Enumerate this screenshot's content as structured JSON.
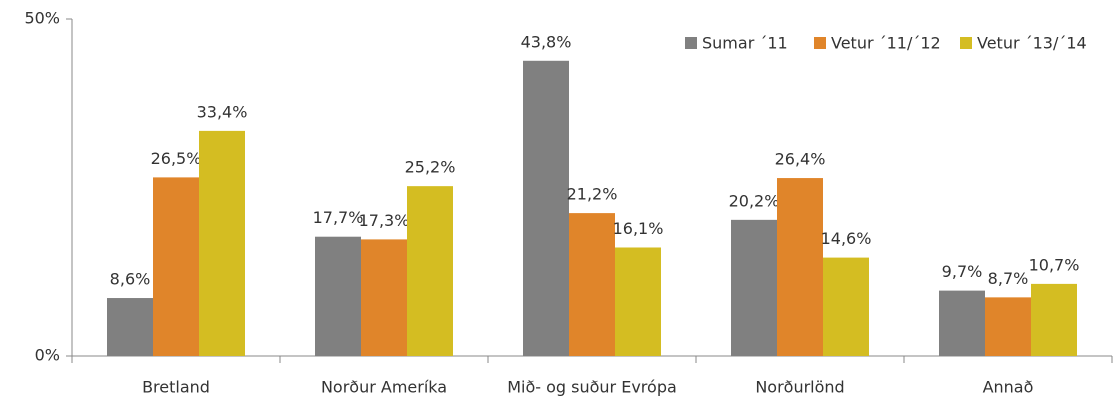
{
  "chart_data": {
    "type": "bar",
    "categories": [
      "Bretland",
      "Norður Ameríka",
      "Mið- og suður Evrópa",
      "Norðurlönd",
      "Annað"
    ],
    "series": [
      {
        "name": "Sumar ´11",
        "color": "#808080",
        "values": [
          8.6,
          17.7,
          43.8,
          20.2,
          9.7
        ],
        "value_labels": [
          "8,6%",
          "17,7%",
          "43,8%",
          "20,2%",
          "9,7%"
        ]
      },
      {
        "name": "Vetur ´11/´12",
        "color": "#e0852a",
        "values": [
          26.5,
          17.3,
          21.2,
          26.4,
          8.7
        ],
        "value_labels": [
          "26,5%",
          "17,3%",
          "21,2%",
          "26,4%",
          "8,7%"
        ]
      },
      {
        "name": "Vetur ´13/´14",
        "color": "#d4bd22",
        "values": [
          33.4,
          25.2,
          16.1,
          14.6,
          10.7
        ],
        "value_labels": [
          "33,4%",
          "25,2%",
          "16,1%",
          "14,6%",
          "10,7%"
        ]
      }
    ],
    "ylim": [
      0,
      50
    ],
    "yticks": [
      {
        "value": 0,
        "label": "0%"
      },
      {
        "value": 50,
        "label": "50%"
      }
    ],
    "grid": false,
    "legend": "top-right"
  }
}
